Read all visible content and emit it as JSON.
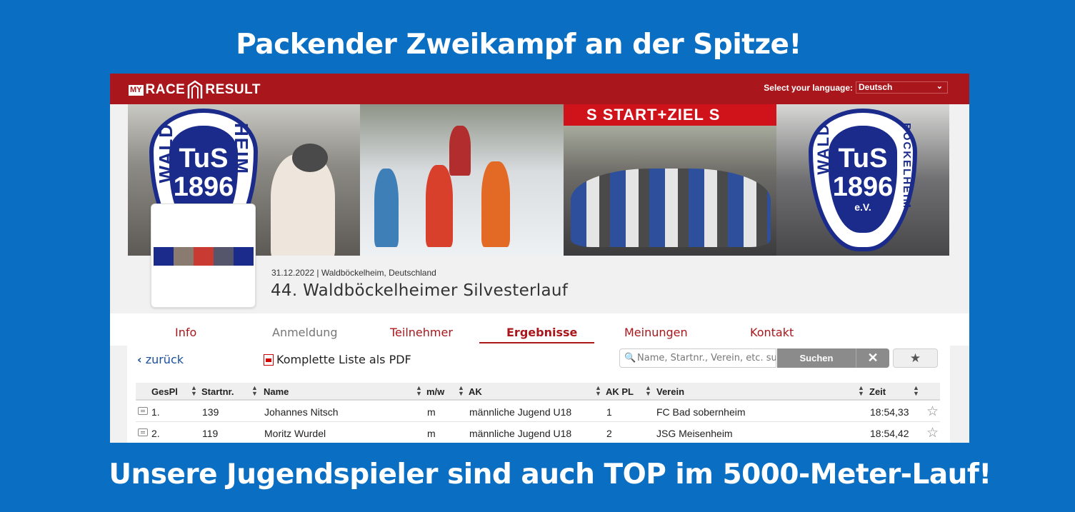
{
  "headlines": {
    "top": "Packender Zweikampf an der Spitze!",
    "bottom": "Unsere Jugendspieler sind auch TOP im 5000-Meter-Lauf!"
  },
  "topbar": {
    "logo_my": "MY",
    "logo_race": "RACE",
    "logo_result": "RESULT",
    "language_label": "Select your language:",
    "language_value": "Deutsch"
  },
  "banner": {
    "startziel": "S START+ZIEL S",
    "badge_tus": "TuS",
    "badge_year": "1896",
    "badge_ev": "e.V.",
    "badge_side_left": "WALD",
    "badge_side_right": "HEIM",
    "badge2_side_left": "WALD",
    "badge2_side_right": "BÖCKELHEIM"
  },
  "event": {
    "date_location": "31.12.2022 | Waldböckelheim, Deutschland",
    "title": "44. Waldböckelheimer Silvesterlauf"
  },
  "tabs": [
    {
      "label": "Info"
    },
    {
      "label": "Anmeldung"
    },
    {
      "label": "Teilnehmer"
    },
    {
      "label": "Ergebnisse"
    },
    {
      "label": "Meinungen"
    },
    {
      "label": "Kontakt"
    }
  ],
  "toolbar": {
    "back": "zurück",
    "pdf": "Komplette Liste als PDF",
    "search_placeholder": "Name, Startnr., Verein, etc. suchen",
    "search_button": "Suchen",
    "clear_button": "✕",
    "fav_button": "★"
  },
  "table": {
    "headers": [
      "GesPl",
      "Startnr.",
      "Name",
      "m/w",
      "AK",
      "AK PL",
      "Verein",
      "Zeit"
    ],
    "rows": [
      {
        "gespl": "1.",
        "startnr": "139",
        "name": "Johannes Nitsch",
        "mw": "m",
        "ak": "männliche Jugend U18",
        "akpl": "1",
        "verein": "FC Bad sobernheim",
        "zeit": "18:54,33"
      },
      {
        "gespl": "2.",
        "startnr": "119",
        "name": "Moritz Wurdel",
        "mw": "m",
        "ak": "männliche Jugend U18",
        "akpl": "2",
        "verein": "JSG Meisenheim",
        "zeit": "18:54,42"
      }
    ]
  },
  "colors": {
    "background": "#0a6ec2",
    "brand_red": "#a9171c",
    "link_blue": "#1a4fa0",
    "club_blue": "#1a2b8c"
  }
}
